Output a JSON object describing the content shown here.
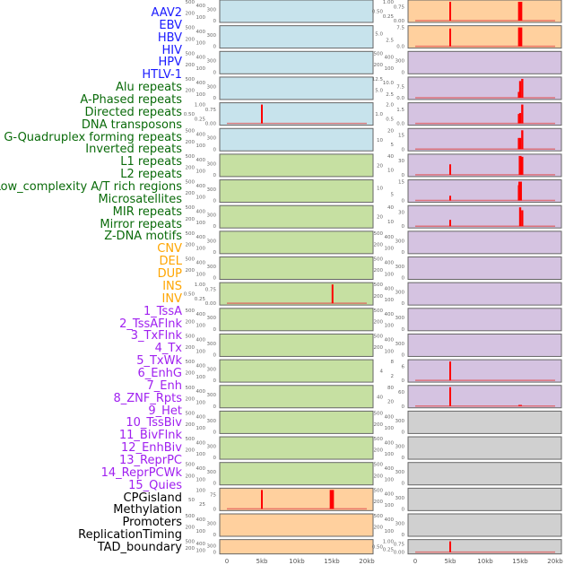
{
  "labels": [
    {
      "t": "AAV2",
      "c": "#1a1aff"
    },
    {
      "t": "EBV",
      "c": "#1a1aff"
    },
    {
      "t": "HBV",
      "c": "#1a1aff"
    },
    {
      "t": "HIV",
      "c": "#1a1aff"
    },
    {
      "t": "HPV",
      "c": "#1a1aff"
    },
    {
      "t": "HTLV-1",
      "c": "#1a1aff"
    },
    {
      "t": "Alu repeats",
      "c": "#0a6b0a"
    },
    {
      "t": "A-Phased repeats",
      "c": "#0a6b0a"
    },
    {
      "t": "Directed repeats",
      "c": "#0a6b0a"
    },
    {
      "t": "DNA transposons",
      "c": "#0a6b0a"
    },
    {
      "t": "G-Quadruplex forming repeats",
      "c": "#0a6b0a"
    },
    {
      "t": "Inverted repeats",
      "c": "#0a6b0a"
    },
    {
      "t": "L1 repeats",
      "c": "#0a6b0a"
    },
    {
      "t": "L2 repeats",
      "c": "#0a6b0a"
    },
    {
      "t": "Low_complexity A/T rich regions",
      "c": "#0a6b0a"
    },
    {
      "t": "Microsatellites",
      "c": "#0a6b0a"
    },
    {
      "t": "MIR repeats",
      "c": "#0a6b0a"
    },
    {
      "t": "Mirror repeats",
      "c": "#0a6b0a"
    },
    {
      "t": "Z-DNA motifs",
      "c": "#0a6b0a"
    },
    {
      "t": "CNV",
      "c": "#ffa500"
    },
    {
      "t": "DEL",
      "c": "#ffa500"
    },
    {
      "t": "DUP",
      "c": "#ffa500"
    },
    {
      "t": "INS",
      "c": "#ffa500"
    },
    {
      "t": "INV",
      "c": "#ffa500"
    },
    {
      "t": "1_TssA",
      "c": "#a020f0"
    },
    {
      "t": "2_TssAFlnk",
      "c": "#a020f0"
    },
    {
      "t": "3_TxFlnk",
      "c": "#a020f0"
    },
    {
      "t": "4_Tx",
      "c": "#a020f0"
    },
    {
      "t": "5_TxWk",
      "c": "#a020f0"
    },
    {
      "t": "6_EnhG",
      "c": "#a020f0"
    },
    {
      "t": "7_Enh",
      "c": "#a020f0"
    },
    {
      "t": "8_ZNF_Rpts",
      "c": "#a020f0"
    },
    {
      "t": "9_Het",
      "c": "#a020f0"
    },
    {
      "t": "10_TssBiv",
      "c": "#a020f0"
    },
    {
      "t": "11_BivFlnk",
      "c": "#a020f0"
    },
    {
      "t": "12_EnhBiv",
      "c": "#a020f0"
    },
    {
      "t": "13_ReprPC",
      "c": "#a020f0"
    },
    {
      "t": "14_ReprPCWk",
      "c": "#a020f0"
    },
    {
      "t": "15_Quies",
      "c": "#a020f0"
    },
    {
      "t": "CPGisland",
      "c": "#000000"
    },
    {
      "t": "Methylation",
      "c": "#000000"
    },
    {
      "t": "Promoters",
      "c": "#000000"
    },
    {
      "t": "ReplicationTiming",
      "c": "#000000"
    },
    {
      "t": "TAD_boundary",
      "c": "#000000"
    }
  ],
  "chart_data": {
    "type": "bar",
    "x_ticks": [
      "0",
      "5kb",
      "10kb",
      "15kb",
      "20kb"
    ],
    "x_tick_values": [
      0,
      5,
      10,
      15,
      20
    ],
    "xlim": [
      0,
      20
    ],
    "colors": {
      "blue": "#c7e3ec",
      "green": "#c6e0a2",
      "orange": "#ffd09e",
      "purple": "#d5c3e1",
      "grey": "#d0d0d0",
      "bar": "#ff0000"
    },
    "default_ticks": [
      "0",
      "100",
      "200",
      "300",
      "400",
      "500"
    ],
    "columns": [
      [
        {
          "bg": "blue"
        },
        {
          "bg": "blue"
        },
        {
          "bg": "blue"
        },
        {
          "bg": "blue"
        },
        {
          "bg": "blue",
          "ymax": 1,
          "ticks": [
            "0.00",
            "0.25",
            "0.50",
            "0.75",
            "1.00"
          ],
          "bars": [
            [
              5,
              1,
              0.15
            ]
          ]
        },
        {
          "bg": "blue"
        },
        {
          "bg": "green"
        },
        {
          "bg": "green"
        },
        {
          "bg": "green"
        },
        {
          "bg": "green"
        },
        {
          "bg": "green"
        },
        {
          "bg": "green",
          "ymax": 1,
          "ticks": [
            "0.00",
            "0.25",
            "0.50",
            "0.75",
            "1.00"
          ],
          "bars": [
            [
              15.1,
              1,
              0.15
            ]
          ]
        },
        {
          "bg": "green"
        },
        {
          "bg": "green"
        },
        {
          "bg": "green"
        },
        {
          "bg": "green"
        },
        {
          "bg": "green"
        },
        {
          "bg": "green"
        },
        {
          "bg": "green"
        },
        {
          "bg": "orange",
          "ymax": 100,
          "ticks": [
            "0",
            "25",
            "50",
            "75",
            "100"
          ],
          "bars": [
            [
              5,
              100,
              0.15
            ],
            [
              15,
              100,
              0.6
            ]
          ]
        },
        {
          "bg": "orange"
        },
        {
          "bg": "orange"
        }
      ],
      [
        {
          "bg": "orange",
          "ymax": 1,
          "ticks": [
            "0.00",
            "0.25",
            "0.50",
            "0.75",
            "1.00"
          ],
          "bars": [
            [
              5,
              1,
              0.15
            ],
            [
              15,
              1,
              0.6
            ]
          ]
        },
        {
          "bg": "orange",
          "ymax": 9,
          "ticks": [
            "0.0",
            "2.5",
            "5.0",
            "7.5"
          ],
          "bars": [
            [
              5,
              8.5,
              0.15
            ],
            [
              15,
              9,
              0.6
            ]
          ]
        },
        {
          "bg": "purple"
        },
        {
          "bg": "purple",
          "ymax": 13,
          "ticks": [
            "0.0",
            "2.5",
            "5.0",
            "7.5",
            "10.0",
            "12.5"
          ],
          "bars": [
            [
              14.8,
              4,
              0.2
            ],
            [
              15,
              11.5,
              0.3
            ],
            [
              15.3,
              13,
              0.3
            ]
          ]
        },
        {
          "bg": "purple",
          "ymax": 2,
          "ticks": [
            "0.0",
            "0.5",
            "1.0",
            "1.5",
            "2.0"
          ],
          "bars": [
            [
              14.8,
              1,
              0.2
            ],
            [
              15,
              1.1,
              0.3
            ],
            [
              15.3,
              2,
              0.3
            ]
          ]
        },
        {
          "bg": "purple",
          "ymax": 22,
          "ticks": [
            "0",
            "5",
            "10",
            "15",
            "20"
          ],
          "bars": [
            [
              14.8,
              13,
              0.2
            ],
            [
              15,
              13,
              0.3
            ],
            [
              15.3,
              22,
              0.3
            ]
          ]
        },
        {
          "bg": "purple",
          "ymax": 45,
          "ticks": [
            "0",
            "10",
            "20",
            "30",
            "40"
          ],
          "bars": [
            [
              5,
              25,
              0.15
            ],
            [
              15,
              45,
              0.4
            ],
            [
              15.3,
              43,
              0.3
            ]
          ]
        },
        {
          "bg": "purple",
          "ymax": 16,
          "ticks": [
            "0",
            "5",
            "10",
            "15"
          ],
          "bars": [
            [
              5,
              4,
              0.15
            ],
            [
              14.8,
              13,
              0.2
            ],
            [
              15,
              16,
              0.5
            ]
          ]
        },
        {
          "bg": "purple",
          "ymax": 45,
          "ticks": [
            "0",
            "10",
            "20",
            "30",
            "40"
          ],
          "bars": [
            [
              5,
              15,
              0.15
            ],
            [
              15,
              45,
              0.3
            ],
            [
              15.3,
              38,
              0.3
            ]
          ]
        },
        {
          "bg": "purple"
        },
        {
          "bg": "purple"
        },
        {
          "bg": "purple"
        },
        {
          "bg": "purple"
        },
        {
          "bg": "purple"
        },
        {
          "bg": "purple",
          "ymax": 8.5,
          "ticks": [
            "0",
            "2",
            "4",
            "6",
            "8"
          ],
          "bars": [
            [
              5,
              8.5,
              0.15
            ]
          ]
        },
        {
          "bg": "purple",
          "ymax": 85,
          "ticks": [
            "0",
            "20",
            "40",
            "60",
            "80"
          ],
          "bars": [
            [
              5,
              85,
              0.15
            ],
            [
              15,
              5,
              0.5
            ]
          ]
        },
        {
          "bg": "grey"
        },
        {
          "bg": "grey"
        },
        {
          "bg": "grey"
        },
        {
          "bg": "grey"
        },
        {
          "bg": "grey"
        },
        {
          "bg": "grey",
          "ymax": 1,
          "ticks": [
            "0.00",
            "0.25",
            "0.50",
            "0.75",
            "1.00"
          ],
          "bars": [
            [
              5,
              1,
              0.15
            ]
          ]
        }
      ]
    ]
  }
}
